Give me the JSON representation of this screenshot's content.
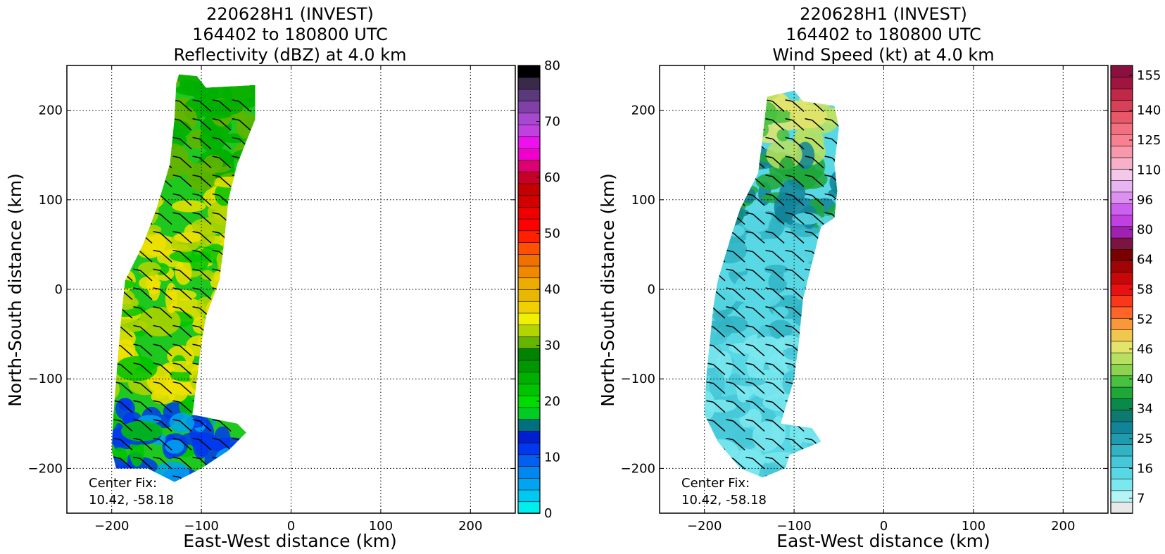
{
  "chart_data": [
    {
      "type": "heatmap",
      "title_lines": [
        "220628H1 (INVEST)",
        "164402 to 180800 UTC",
        "Reflectivity (dBZ) at 4.0 km"
      ],
      "xlabel": "East-West distance (km)",
      "ylabel": "North-South distance (km)",
      "xlim": [
        -250,
        250
      ],
      "ylim": [
        -250,
        250
      ],
      "xticks": [
        -200,
        -100,
        0,
        100,
        200
      ],
      "yticks": [
        -200,
        -100,
        0,
        100,
        200
      ],
      "x_tick_labels": [
        "−200",
        "−100",
        "0",
        "100",
        "200"
      ],
      "y_tick_labels": [
        "−200",
        "−100",
        "0",
        "100",
        "200"
      ],
      "grid": true,
      "annotation": [
        "Center Fix:",
        "10.42, -58.18"
      ],
      "colorbar": {
        "vmin": 0,
        "vmax": 80,
        "tick_values": [
          0,
          10,
          20,
          30,
          40,
          50,
          60,
          70,
          80
        ],
        "tick_labels": [
          "0",
          "10",
          "20",
          "30",
          "40",
          "50",
          "60",
          "70",
          "80"
        ],
        "colors": [
          "#00eeee",
          "#00c8f0",
          "#00a4f0",
          "#0088f0",
          "#0060f0",
          "#0038f0",
          "#0020d0",
          "#00707e",
          "#00cc22",
          "#00dc00",
          "#00c400",
          "#00b000",
          "#009800",
          "#008400",
          "#64b400",
          "#b4d400",
          "#f0f000",
          "#f0d000",
          "#e8b800",
          "#ecac00",
          "#f08800",
          "#f07000",
          "#ff5000",
          "#ff2000",
          "#ff0000",
          "#ee0000",
          "#d40000",
          "#c40000",
          "#c80028",
          "#dc0070",
          "#f000cc",
          "#ee10ee",
          "#c040e0",
          "#a848d0",
          "#8040a8",
          "#5a3a7c",
          "#3a2a4a",
          "#000000"
        ]
      },
      "region": {
        "description_boundary_points_km": [
          [
            -125,
            240
          ],
          [
            -105,
            238
          ],
          [
            -95,
            225
          ],
          [
            -40,
            228
          ],
          [
            -40,
            190
          ],
          [
            -60,
            140
          ],
          [
            -70,
            100
          ],
          [
            -75,
            50
          ],
          [
            -80,
            10
          ],
          [
            -95,
            -30
          ],
          [
            -100,
            -60
          ],
          [
            -105,
            -100
          ],
          [
            -110,
            -140
          ],
          [
            -60,
            -150
          ],
          [
            -50,
            -160
          ],
          [
            -70,
            -180
          ],
          [
            -100,
            -200
          ],
          [
            -130,
            -215
          ],
          [
            -160,
            -200
          ],
          [
            -195,
            -200
          ],
          [
            -200,
            -180
          ],
          [
            -198,
            -140
          ],
          [
            -195,
            -100
          ],
          [
            -190,
            -40
          ],
          [
            -185,
            10
          ],
          [
            -165,
            50
          ],
          [
            -150,
            90
          ],
          [
            -135,
            140
          ],
          [
            -130,
            190
          ],
          [
            -128,
            230
          ]
        ]
      }
    },
    {
      "type": "heatmap",
      "title_lines": [
        "220628H1 (INVEST)",
        "164402 to 180800 UTC",
        "Wind Speed (kt) at 4.0 km"
      ],
      "xlabel": "East-West distance (km)",
      "ylabel": "North-South distance (km)",
      "xlim": [
        -250,
        250
      ],
      "ylim": [
        -250,
        250
      ],
      "xticks": [
        -200,
        -100,
        0,
        100,
        200
      ],
      "yticks": [
        -200,
        -100,
        0,
        100,
        200
      ],
      "x_tick_labels": [
        "−200",
        "−100",
        "0",
        "100",
        "200"
      ],
      "y_tick_labels": [
        "−200",
        "−100",
        "0",
        "100",
        "200"
      ],
      "grid": true,
      "annotation": [
        "Center Fix:",
        "10.42, -58.18"
      ],
      "colorbar": {
        "tick_labels": [
          "7",
          "16",
          "25",
          "34",
          "40",
          "46",
          "52",
          "58",
          "64",
          "80",
          "96",
          "110",
          "125",
          "140",
          "155"
        ],
        "colors": [
          "#e8e8e8",
          "#b4f4f4",
          "#7ae8ee",
          "#58d8e4",
          "#46c8d8",
          "#30b4c4",
          "#1e9cae",
          "#12849a",
          "#0c7a6e",
          "#0a8a4a",
          "#1ea838",
          "#48c040",
          "#8cd450",
          "#b8e060",
          "#e4e46c",
          "#f0c850",
          "#f89838",
          "#ff6428",
          "#f83818",
          "#e81010",
          "#c80808",
          "#a00404",
          "#7a0000",
          "#7a1440",
          "#a020b0",
          "#c040e0",
          "#cc60ee",
          "#dc90f0",
          "#e8b4f4",
          "#f4c8e8",
          "#f8b0c8",
          "#f898ac",
          "#f88090",
          "#f07080",
          "#e85868",
          "#d84058",
          "#c02848",
          "#a01440",
          "#8a1040"
        ]
      },
      "region": {
        "description_boundary_points_km": [
          [
            -130,
            215
          ],
          [
            -100,
            222
          ],
          [
            -90,
            210
          ],
          [
            -55,
            205
          ],
          [
            -50,
            180
          ],
          [
            -55,
            140
          ],
          [
            -52,
            110
          ],
          [
            -55,
            80
          ],
          [
            -70,
            70
          ],
          [
            -80,
            30
          ],
          [
            -90,
            -10
          ],
          [
            -95,
            -60
          ],
          [
            -100,
            -100
          ],
          [
            -115,
            -150
          ],
          [
            -80,
            -155
          ],
          [
            -70,
            -170
          ],
          [
            -105,
            -185
          ],
          [
            -110,
            -200
          ],
          [
            -135,
            -210
          ],
          [
            -160,
            -200
          ],
          [
            -185,
            -170
          ],
          [
            -200,
            -140
          ],
          [
            -198,
            -100
          ],
          [
            -190,
            -20
          ],
          [
            -185,
            10
          ],
          [
            -170,
            60
          ],
          [
            -160,
            90
          ],
          [
            -140,
            130
          ],
          [
            -135,
            170
          ]
        ]
      }
    }
  ]
}
